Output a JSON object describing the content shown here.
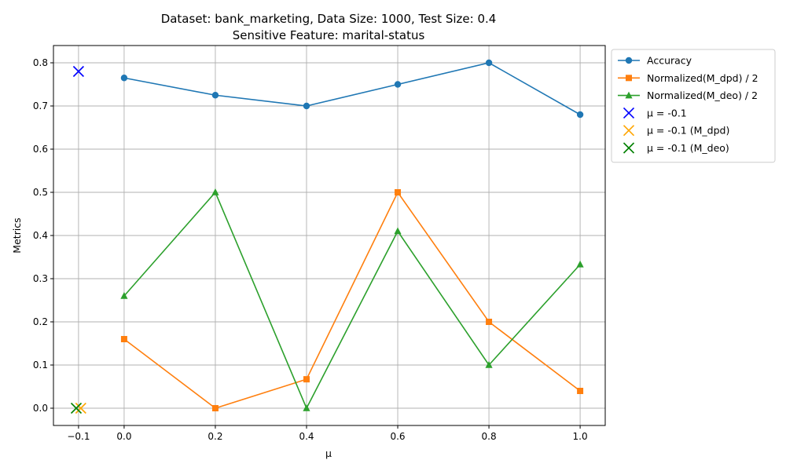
{
  "chart_data": {
    "type": "line",
    "title_line1": "Dataset: bank_marketing, Data Size: 1000, Test Size: 0.4",
    "title_line2": "Sensitive Feature: marital-status",
    "xlabel": "μ",
    "ylabel": "Metrics",
    "xlim": [
      -0.155,
      1.055
    ],
    "ylim": [
      -0.04,
      0.84
    ],
    "xticks": [
      -0.1,
      0.0,
      0.2,
      0.4,
      0.6,
      0.8,
      1.0
    ],
    "xtick_labels": [
      "−0.1",
      "0.0",
      "0.2",
      "0.4",
      "0.6",
      "0.8",
      "1.0"
    ],
    "yticks": [
      0.0,
      0.1,
      0.2,
      0.3,
      0.4,
      0.5,
      0.6,
      0.7,
      0.8
    ],
    "ytick_labels": [
      "0.0",
      "0.1",
      "0.2",
      "0.3",
      "0.4",
      "0.5",
      "0.6",
      "0.7",
      "0.8"
    ],
    "x": [
      0.0,
      0.2,
      0.4,
      0.6,
      0.8,
      1.0
    ],
    "series": [
      {
        "name": "Accuracy",
        "color": "#1f77b4",
        "marker": "circle",
        "values": [
          0.765,
          0.725,
          0.7,
          0.75,
          0.8,
          0.68
        ]
      },
      {
        "name": "Normalized(M_dpd) / 2",
        "color": "#ff7f0e",
        "marker": "square",
        "values": [
          0.16,
          0.0,
          0.067,
          0.5,
          0.2,
          0.04
        ]
      },
      {
        "name": "Normalized(M_deo) / 2",
        "color": "#2ca02c",
        "marker": "triangle",
        "values": [
          0.26,
          0.5,
          0.0,
          0.41,
          0.1,
          0.333
        ]
      }
    ],
    "points": [
      {
        "name": "μ = -0.1",
        "color": "#0000ff",
        "marker": "x",
        "x": -0.1,
        "y": 0.78
      },
      {
        "name": "μ = -0.1 (M_dpd)",
        "color": "#ffa500",
        "marker": "x",
        "x": -0.095,
        "y": 0.0
      },
      {
        "name": "μ = -0.1 (M_deo)",
        "color": "#008000",
        "marker": "x",
        "x": -0.105,
        "y": 0.0
      }
    ],
    "grid": true,
    "legend_position": "outside-upper-right"
  }
}
